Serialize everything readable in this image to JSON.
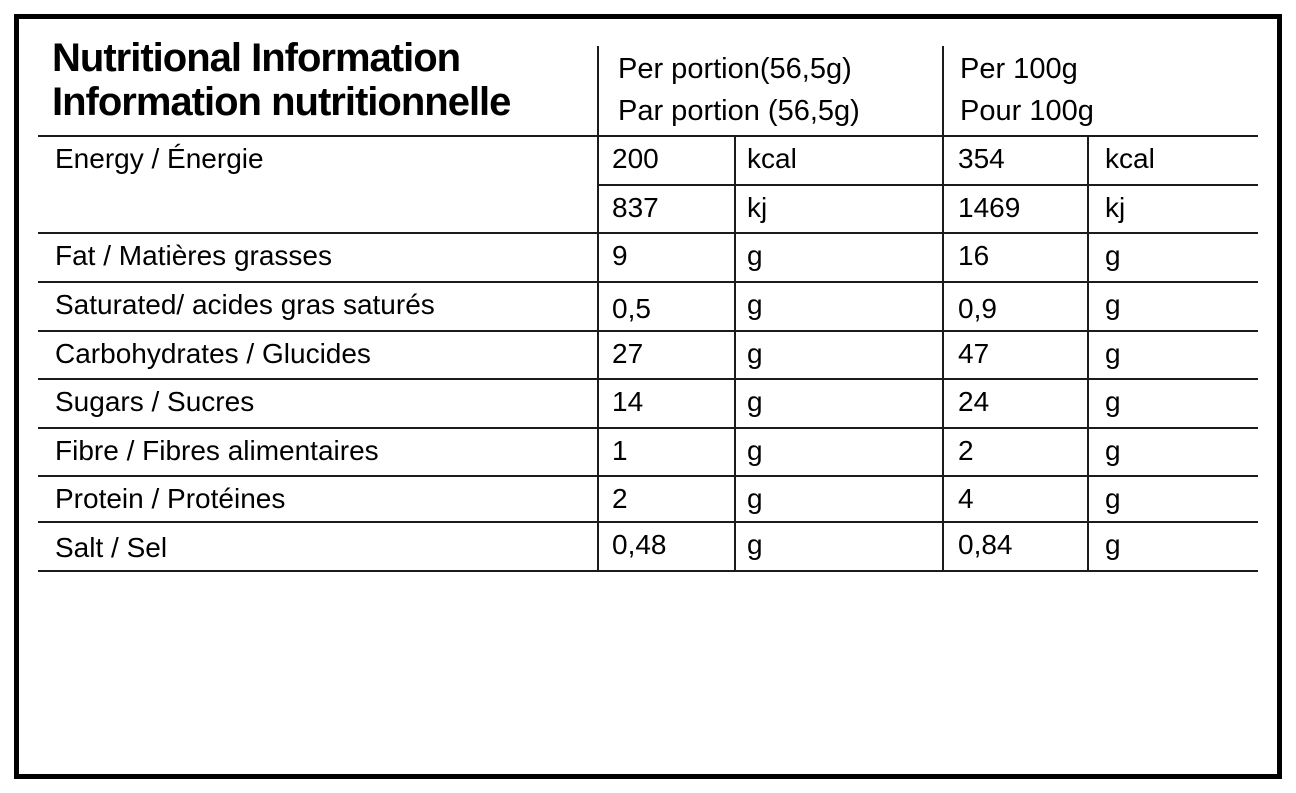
{
  "table": {
    "title": {
      "en": "Nutritional Information",
      "fr": "Information nutritionnelle"
    },
    "columns": {
      "per_portion": {
        "en": "Per portion(56,5g)",
        "fr": "Par portion (56,5g)"
      },
      "per_100g": {
        "en": "Per 100g",
        "fr": "Pour 100g"
      }
    },
    "energy": {
      "label": "Energy / Énergie",
      "rows": [
        {
          "portion_value": "200",
          "portion_unit": "kcal",
          "per100_value": "354",
          "per100_unit": "kcal"
        },
        {
          "portion_value": "837",
          "portion_unit": "kj",
          "per100_value": "1469",
          "per100_unit": "kj"
        }
      ]
    },
    "nutrients": [
      {
        "label": "Fat / Matières grasses",
        "portion_value": "9",
        "portion_unit": "g",
        "per100_value": "16",
        "per100_unit": "g"
      },
      {
        "label": "Saturated/ acides gras saturés",
        "portion_value": "0,5",
        "portion_unit": "g",
        "per100_value": "0,9",
        "per100_unit": "g"
      },
      {
        "label": "Carbohydrates / Glucides",
        "portion_value": "27",
        "portion_unit": "g",
        "per100_value": "47",
        "per100_unit": "g"
      },
      {
        "label": "Sugars / Sucres",
        "portion_value": "14",
        "portion_unit": "g",
        "per100_value": "24",
        "per100_unit": "g"
      },
      {
        "label": "Fibre / Fibres alimentaires",
        "portion_value": "1",
        "portion_unit": "g",
        "per100_value": "2",
        "per100_unit": "g"
      },
      {
        "label": "Protein / Protéines",
        "portion_value": "2",
        "portion_unit": "g",
        "per100_value": "4",
        "per100_unit": "g"
      },
      {
        "label": "Salt / Sel",
        "portion_value": "0,48",
        "portion_unit": "g",
        "per100_value": "0,84",
        "per100_unit": "g"
      }
    ],
    "colors": {
      "border": "#000000",
      "grid_line": "#1b1b1b",
      "text": "#000000",
      "background": "#ffffff"
    }
  }
}
